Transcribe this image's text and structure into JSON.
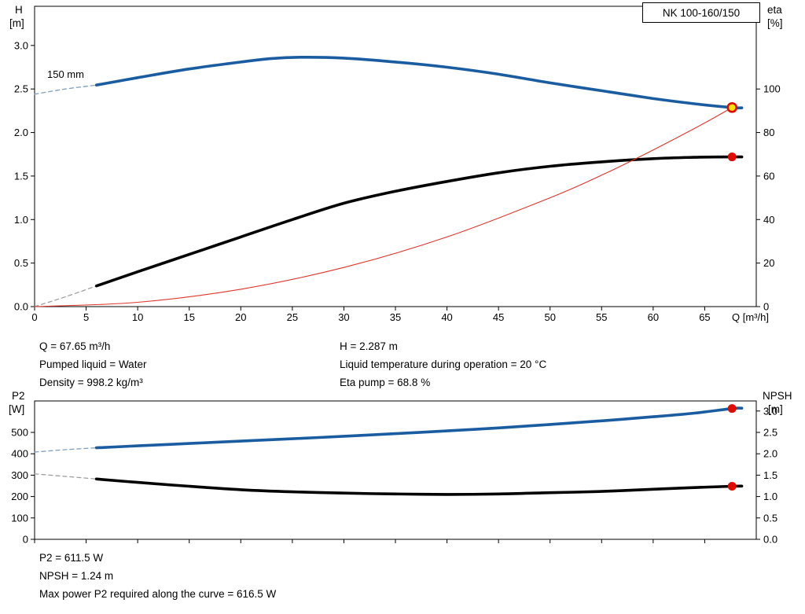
{
  "results_top": {
    "left": [
      "Q = 67.65 m³/h",
      "Pumped liquid = Water",
      "Density = 998.2 kg/m³"
    ],
    "right": [
      "H = 2.287 m",
      "Liquid temperature during operation = 20 °C",
      "Eta pump = 68.8 %"
    ]
  },
  "results_bottom": [
    "P2 = 611.5 W",
    "NPSH = 1.24 m",
    "Max power P2 required along the curve = 616.5 W"
  ],
  "chart_data": [
    {
      "type": "line",
      "title": "NK 100-160/150",
      "curve_label": "150 mm",
      "x_axis": {
        "label": "Q [m³/h]",
        "min": 0,
        "max": 70,
        "ticks": [
          [
            0,
            "0"
          ],
          [
            5,
            "5"
          ],
          [
            10,
            "10"
          ],
          [
            15,
            "15"
          ],
          [
            20,
            "20"
          ],
          [
            25,
            "25"
          ],
          [
            30,
            "30"
          ],
          [
            35,
            "35"
          ],
          [
            40,
            "40"
          ],
          [
            45,
            "45"
          ],
          [
            50,
            "50"
          ],
          [
            55,
            "55"
          ],
          [
            60,
            "60"
          ],
          [
            65,
            "65"
          ]
        ]
      },
      "y_left": {
        "label": "H",
        "unit": "[m]",
        "min": 0,
        "max": 3.45,
        "ticks": [
          [
            0,
            "0.0"
          ],
          [
            0.5,
            "0.5"
          ],
          [
            1,
            "1.0"
          ],
          [
            1.5,
            "1.5"
          ],
          [
            2,
            "2.0"
          ],
          [
            2.5,
            "2.5"
          ],
          [
            3,
            "3.0"
          ]
        ]
      },
      "y_right": {
        "label": "eta",
        "unit": "[%]",
        "min": 0,
        "max": 138,
        "ticks": [
          [
            0,
            "0"
          ],
          [
            20,
            "20"
          ],
          [
            40,
            "40"
          ],
          [
            60,
            "60"
          ],
          [
            80,
            "80"
          ],
          [
            100,
            "100"
          ]
        ]
      },
      "series": [
        {
          "name": "head-curve-lead-dashed",
          "axis": "left",
          "color": "#7d9fc4",
          "width": 1.3,
          "dash": "5 4",
          "points": [
            [
              0,
              2.44
            ],
            [
              3,
              2.5
            ],
            [
              6,
              2.545
            ]
          ]
        },
        {
          "name": "head-curve",
          "axis": "left",
          "color": "#1a5ca0",
          "width": 3.6,
          "points": [
            [
              6,
              2.545
            ],
            [
              10,
              2.63
            ],
            [
              15,
              2.73
            ],
            [
              20,
              2.81
            ],
            [
              23,
              2.85
            ],
            [
              26,
              2.865
            ],
            [
              30,
              2.855
            ],
            [
              35,
              2.81
            ],
            [
              40,
              2.75
            ],
            [
              45,
              2.67
            ],
            [
              50,
              2.57
            ],
            [
              55,
              2.48
            ],
            [
              60,
              2.39
            ],
            [
              64,
              2.33
            ],
            [
              67.65,
              2.287
            ],
            [
              68.6,
              2.283
            ]
          ]
        },
        {
          "name": "eta-curve-lead-dashed",
          "axis": "right",
          "color": "#9a9a9a",
          "width": 1.2,
          "dash": "5 4",
          "points": [
            [
              0,
              0
            ],
            [
              3,
              4.5
            ],
            [
              6,
              9.5
            ]
          ]
        },
        {
          "name": "eta-curve",
          "axis": "right",
          "color": "#000000",
          "width": 3.6,
          "points": [
            [
              6,
              9.5
            ],
            [
              10,
              16
            ],
            [
              15,
              24
            ],
            [
              20,
              32
            ],
            [
              25,
              40
            ],
            [
              30,
              47.5
            ],
            [
              35,
              53
            ],
            [
              40,
              57.5
            ],
            [
              45,
              61.5
            ],
            [
              50,
              64.5
            ],
            [
              55,
              66.5
            ],
            [
              60,
              68
            ],
            [
              64,
              68.6
            ],
            [
              67.65,
              68.8
            ],
            [
              68.6,
              68.8
            ]
          ]
        },
        {
          "name": "system-curve",
          "axis": "left",
          "color": "#e0352b",
          "width": 1.1,
          "points": [
            [
              0,
              0
            ],
            [
              10,
              0.05
            ],
            [
              20,
              0.2
            ],
            [
              30,
              0.45
            ],
            [
              40,
              0.8
            ],
            [
              50,
              1.25
            ],
            [
              55,
              1.51
            ],
            [
              60,
              1.8
            ],
            [
              65,
              2.11
            ],
            [
              67.65,
              2.287
            ]
          ]
        }
      ],
      "markers": [
        {
          "name": "duty-point-marker",
          "axis": "left",
          "x": 67.65,
          "y": 2.287,
          "r": 5.5,
          "fill": "#ffe400",
          "stroke": "#e00b00",
          "stroke_width": 2.6
        },
        {
          "name": "eta-point-marker",
          "axis": "right",
          "x": 67.65,
          "y": 68.8,
          "r": 5.5,
          "fill": "#e00b00",
          "stroke": "none",
          "stroke_width": 0
        }
      ]
    },
    {
      "type": "line",
      "x_axis": {
        "label": "",
        "min": 0,
        "max": 70,
        "ticks": [
          [
            0
          ],
          [
            5
          ],
          [
            10
          ],
          [
            15
          ],
          [
            20
          ],
          [
            25
          ],
          [
            30
          ],
          [
            35
          ],
          [
            40
          ],
          [
            45
          ],
          [
            50
          ],
          [
            55
          ],
          [
            60
          ],
          [
            65
          ]
        ]
      },
      "y_left": {
        "label": "P2",
        "unit": "[W]",
        "min": 0,
        "max": 647,
        "ticks": [
          [
            0,
            "0"
          ],
          [
            100,
            "100"
          ],
          [
            200,
            "200"
          ],
          [
            300,
            "300"
          ],
          [
            400,
            "400"
          ],
          [
            500,
            "500"
          ]
        ]
      },
      "y_right": {
        "label": "NPSH",
        "unit": "[m]",
        "min": 0,
        "max": 3.235,
        "ticks": [
          [
            0,
            "0.0"
          ],
          [
            0.5,
            "0.5"
          ],
          [
            1,
            "1.0"
          ],
          [
            1.5,
            "1.5"
          ],
          [
            2,
            "2.0"
          ],
          [
            2.5,
            "2.5"
          ],
          [
            3,
            "3.0"
          ]
        ]
      },
      "series": [
        {
          "name": "p2-curve-lead-dashed",
          "axis": "left",
          "color": "#7d9fc4",
          "width": 1.3,
          "dash": "5 4",
          "points": [
            [
              0,
              408
            ],
            [
              3,
              419
            ],
            [
              6,
              428
            ]
          ]
        },
        {
          "name": "p2-curve",
          "axis": "left",
          "color": "#1a5ca0",
          "width": 3.6,
          "points": [
            [
              6,
              428
            ],
            [
              10,
              437
            ],
            [
              15,
              448
            ],
            [
              20,
              459
            ],
            [
              25,
              470
            ],
            [
              30,
              482
            ],
            [
              35,
              494
            ],
            [
              40,
              507
            ],
            [
              45,
              521
            ],
            [
              50,
              537
            ],
            [
              55,
              554
            ],
            [
              60,
              573
            ],
            [
              64,
              590
            ],
            [
              67.65,
              611.5
            ],
            [
              68.6,
              613
            ]
          ]
        },
        {
          "name": "npsh-curve-lead-dashed",
          "axis": "right",
          "color": "#9a9a9a",
          "width": 1.2,
          "dash": "5 4",
          "points": [
            [
              0,
              1.53
            ],
            [
              3,
              1.47
            ],
            [
              6,
              1.41
            ]
          ]
        },
        {
          "name": "npsh-curve",
          "axis": "right",
          "color": "#000000",
          "width": 3.6,
          "points": [
            [
              6,
              1.41
            ],
            [
              10,
              1.33
            ],
            [
              15,
              1.24
            ],
            [
              20,
              1.16
            ],
            [
              25,
              1.11
            ],
            [
              30,
              1.08
            ],
            [
              35,
              1.06
            ],
            [
              40,
              1.05
            ],
            [
              45,
              1.06
            ],
            [
              50,
              1.09
            ],
            [
              55,
              1.12
            ],
            [
              60,
              1.17
            ],
            [
              64,
              1.21
            ],
            [
              67.65,
              1.24
            ],
            [
              68.6,
              1.245
            ]
          ]
        }
      ],
      "markers": [
        {
          "name": "p2-point-marker",
          "axis": "left",
          "x": 67.65,
          "y": 611.5,
          "r": 5.5,
          "fill": "#e00b00",
          "stroke": "none",
          "stroke_width": 0
        },
        {
          "name": "npsh-point-marker",
          "axis": "right",
          "x": 67.65,
          "y": 1.24,
          "r": 5.5,
          "fill": "#e00b00",
          "stroke": "none",
          "stroke_width": 0
        }
      ]
    }
  ]
}
